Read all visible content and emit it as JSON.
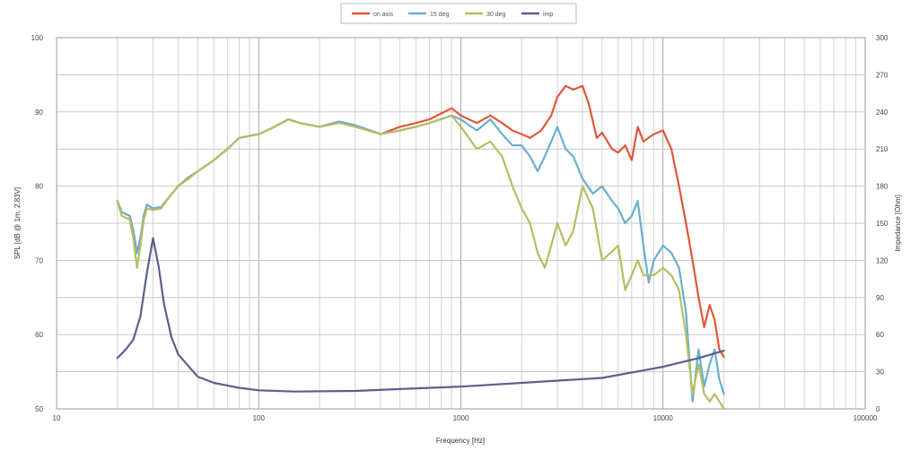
{
  "chart_data": {
    "type": "line",
    "title": "",
    "xlabel": "Frequency [Hz]",
    "ylabel_left": "SPL [dB @ 1m, 2.83V]",
    "ylabel_right": "Impedance [Ohm]",
    "x_scale": "log",
    "xlim": [
      10,
      100000
    ],
    "ylim_left": [
      50,
      100
    ],
    "ylim_right": [
      0,
      300
    ],
    "grid": true,
    "legend_position": "top-center",
    "x_ticks": [
      "10",
      "100",
      "1000",
      "10000",
      "100000"
    ],
    "y_ticks_left": [
      "50",
      "60",
      "70",
      "80",
      "90",
      "100"
    ],
    "y_ticks_right": [
      "0",
      "30",
      "60",
      "90",
      "120",
      "150",
      "180",
      "210",
      "240",
      "270",
      "300"
    ],
    "series": [
      {
        "name": "on axis",
        "axis": "left",
        "color": "#e0573a",
        "points": [
          [
            20,
            78
          ],
          [
            21,
            76.5
          ],
          [
            23,
            76
          ],
          [
            24,
            74
          ],
          [
            25,
            71
          ],
          [
            26,
            73
          ],
          [
            27,
            76
          ],
          [
            28,
            77.5
          ],
          [
            30,
            77
          ],
          [
            33,
            77.2
          ],
          [
            36,
            78.5
          ],
          [
            40,
            80
          ],
          [
            45,
            81.2
          ],
          [
            50,
            82
          ],
          [
            60,
            83.5
          ],
          [
            70,
            85
          ],
          [
            80,
            86.5
          ],
          [
            100,
            87
          ],
          [
            120,
            88
          ],
          [
            140,
            89
          ],
          [
            160,
            88.5
          ],
          [
            200,
            88
          ],
          [
            250,
            88.7
          ],
          [
            300,
            88.2
          ],
          [
            400,
            87
          ],
          [
            500,
            88
          ],
          [
            600,
            88.5
          ],
          [
            700,
            89
          ],
          [
            900,
            90.5
          ],
          [
            1000,
            89.5
          ],
          [
            1200,
            88.5
          ],
          [
            1400,
            89.5
          ],
          [
            1600,
            88.5
          ],
          [
            1800,
            87.5
          ],
          [
            2000,
            87
          ],
          [
            2200,
            86.5
          ],
          [
            2500,
            87.5
          ],
          [
            2800,
            89.5
          ],
          [
            3000,
            92
          ],
          [
            3300,
            93.5
          ],
          [
            3600,
            93
          ],
          [
            4000,
            93.5
          ],
          [
            4300,
            91
          ],
          [
            4700,
            86.5
          ],
          [
            5000,
            87.2
          ],
          [
            5600,
            85
          ],
          [
            6000,
            84.5
          ],
          [
            6500,
            85.5
          ],
          [
            7000,
            83.5
          ],
          [
            7500,
            88
          ],
          [
            8000,
            86
          ],
          [
            9000,
            87
          ],
          [
            10000,
            87.5
          ],
          [
            11000,
            85
          ],
          [
            12000,
            80
          ],
          [
            13000,
            75
          ],
          [
            14000,
            70
          ],
          [
            15000,
            65
          ],
          [
            16000,
            61
          ],
          [
            17000,
            64
          ],
          [
            18000,
            62
          ],
          [
            19000,
            58
          ],
          [
            20000,
            57
          ]
        ]
      },
      {
        "name": "15 deg",
        "axis": "left",
        "color": "#6baed0",
        "points": [
          [
            20,
            78
          ],
          [
            21,
            76.5
          ],
          [
            23,
            76
          ],
          [
            24,
            74
          ],
          [
            25,
            71
          ],
          [
            26,
            73
          ],
          [
            27,
            76
          ],
          [
            28,
            77.5
          ],
          [
            30,
            77
          ],
          [
            33,
            77.2
          ],
          [
            36,
            78.5
          ],
          [
            40,
            80
          ],
          [
            45,
            81.2
          ],
          [
            50,
            82
          ],
          [
            60,
            83.5
          ],
          [
            70,
            85
          ],
          [
            80,
            86.5
          ],
          [
            100,
            87
          ],
          [
            120,
            88
          ],
          [
            140,
            89
          ],
          [
            160,
            88.5
          ],
          [
            200,
            88
          ],
          [
            250,
            88.7
          ],
          [
            300,
            88.2
          ],
          [
            400,
            87
          ],
          [
            500,
            87.5
          ],
          [
            600,
            88
          ],
          [
            700,
            88.5
          ],
          [
            900,
            89.5
          ],
          [
            1000,
            89
          ],
          [
            1200,
            87.5
          ],
          [
            1400,
            89
          ],
          [
            1600,
            87
          ],
          [
            1800,
            85.5
          ],
          [
            2000,
            85.5
          ],
          [
            2200,
            84
          ],
          [
            2400,
            82
          ],
          [
            2600,
            84
          ],
          [
            2800,
            86
          ],
          [
            3000,
            88
          ],
          [
            3300,
            85
          ],
          [
            3600,
            84
          ],
          [
            4000,
            81
          ],
          [
            4500,
            79
          ],
          [
            5000,
            80
          ],
          [
            5600,
            78
          ],
          [
            6000,
            77
          ],
          [
            6500,
            75
          ],
          [
            7000,
            76
          ],
          [
            7500,
            78
          ],
          [
            8000,
            72
          ],
          [
            8500,
            67
          ],
          [
            9000,
            70
          ],
          [
            10000,
            72
          ],
          [
            11000,
            71
          ],
          [
            12000,
            69
          ],
          [
            13000,
            63
          ],
          [
            14000,
            51
          ],
          [
            15000,
            58
          ],
          [
            16000,
            53
          ],
          [
            17000,
            56
          ],
          [
            18000,
            58
          ],
          [
            19000,
            54
          ],
          [
            20000,
            52
          ]
        ]
      },
      {
        "name": "30 deg",
        "axis": "left",
        "color": "#b7bd63",
        "points": [
          [
            20,
            78
          ],
          [
            21,
            76
          ],
          [
            23,
            75.5
          ],
          [
            24,
            73
          ],
          [
            25,
            69
          ],
          [
            26,
            72
          ],
          [
            27,
            75.5
          ],
          [
            28,
            77
          ],
          [
            30,
            76.8
          ],
          [
            33,
            77
          ],
          [
            36,
            78.5
          ],
          [
            40,
            80
          ],
          [
            45,
            81
          ],
          [
            50,
            82
          ],
          [
            60,
            83.5
          ],
          [
            70,
            85
          ],
          [
            80,
            86.5
          ],
          [
            100,
            87
          ],
          [
            120,
            88
          ],
          [
            140,
            89
          ],
          [
            160,
            88.5
          ],
          [
            200,
            88
          ],
          [
            250,
            88.5
          ],
          [
            300,
            88
          ],
          [
            400,
            87
          ],
          [
            500,
            87.5
          ],
          [
            600,
            88
          ],
          [
            700,
            88.5
          ],
          [
            900,
            89.5
          ],
          [
            1000,
            88
          ],
          [
            1200,
            85
          ],
          [
            1400,
            86
          ],
          [
            1600,
            84
          ],
          [
            1800,
            80
          ],
          [
            2000,
            77
          ],
          [
            2200,
            75
          ],
          [
            2400,
            71
          ],
          [
            2600,
            69
          ],
          [
            2800,
            72
          ],
          [
            3000,
            75
          ],
          [
            3300,
            72
          ],
          [
            3600,
            74
          ],
          [
            4000,
            80
          ],
          [
            4500,
            77
          ],
          [
            5000,
            70
          ],
          [
            5500,
            71
          ],
          [
            6000,
            72
          ],
          [
            6500,
            66
          ],
          [
            7000,
            68
          ],
          [
            7500,
            70
          ],
          [
            8000,
            68
          ],
          [
            9000,
            68
          ],
          [
            10000,
            69
          ],
          [
            11000,
            68
          ],
          [
            12000,
            66
          ],
          [
            13000,
            60
          ],
          [
            14000,
            52
          ],
          [
            15000,
            56
          ],
          [
            16000,
            52
          ],
          [
            17000,
            51
          ],
          [
            18000,
            52
          ],
          [
            19000,
            51
          ],
          [
            20000,
            50
          ]
        ]
      },
      {
        "name": "imp",
        "axis": "right",
        "color": "#5c5f8e",
        "points": [
          [
            20,
            41
          ],
          [
            22,
            48
          ],
          [
            24,
            56
          ],
          [
            26,
            75
          ],
          [
            28,
            110
          ],
          [
            30,
            138
          ],
          [
            32,
            115
          ],
          [
            34,
            85
          ],
          [
            37,
            58
          ],
          [
            40,
            44
          ],
          [
            50,
            26
          ],
          [
            60,
            21
          ],
          [
            80,
            17
          ],
          [
            100,
            15
          ],
          [
            150,
            14
          ],
          [
            300,
            14.5
          ],
          [
            500,
            16
          ],
          [
            1000,
            18
          ],
          [
            2000,
            21
          ],
          [
            5000,
            25
          ],
          [
            10000,
            34
          ],
          [
            15000,
            41
          ],
          [
            20000,
            47
          ]
        ]
      }
    ]
  }
}
